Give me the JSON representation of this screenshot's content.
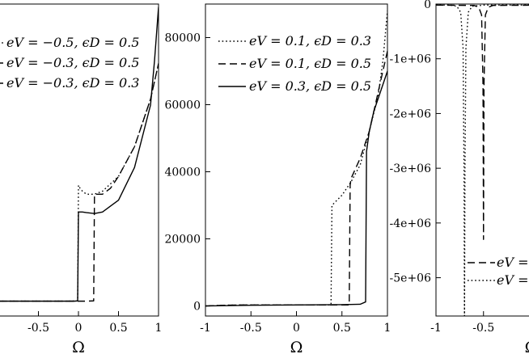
{
  "chart_data": [
    {
      "type": "line",
      "xlabel": "Ω",
      "ylabel": "",
      "xlim": [
        -1,
        1
      ],
      "ylim": [
        -5,
        100
      ],
      "x_ticks": [
        "-0.5",
        "0",
        "0.5",
        "1"
      ],
      "y_ticks": [],
      "legend_position": "top-left",
      "series": [
        {
          "name": "eV = −0.5, ϵD = 0.5",
          "style": "dotted",
          "x": [
            -1,
            -0.1,
            -0.01,
            0.0,
            0.02,
            0.05,
            0.1,
            0.2,
            0.3,
            0.5,
            0.7,
            0.9,
            1.0
          ],
          "y": [
            0,
            0,
            0.1,
            39,
            38,
            37,
            36,
            36,
            37,
            42,
            52,
            68,
            80
          ]
        },
        {
          "name": "eV = −0.3, ϵD = 0.5",
          "style": "dashed",
          "x": [
            -1,
            0.1,
            0.19,
            0.2,
            0.25,
            0.3,
            0.4,
            0.5,
            0.7,
            0.9,
            1.0
          ],
          "y": [
            0,
            0,
            0.1,
            36,
            36,
            36,
            38,
            42,
            52,
            68,
            80
          ]
        },
        {
          "name": "eV = −0.3, ϵD = 0.3",
          "style": "solid",
          "x": [
            -1,
            -0.05,
            -0.01,
            0.0,
            0.02,
            0.05,
            0.1,
            0.2,
            0.3,
            0.5,
            0.7,
            0.9,
            0.95,
            1.0
          ],
          "y": [
            0,
            0,
            0.1,
            30,
            30,
            30,
            29.8,
            29.5,
            30,
            34,
            45,
            66,
            81,
            99
          ]
        }
      ]
    },
    {
      "type": "line",
      "xlabel": "Ω",
      "ylabel": "",
      "xlim": [
        -1,
        1
      ],
      "ylim": [
        -3000,
        90000
      ],
      "x_ticks": [
        "-1",
        "-0.5",
        "0",
        "0.5",
        "1"
      ],
      "y_ticks": [
        "0",
        "20000",
        "40000",
        "60000",
        "80000"
      ],
      "legend_position": "top-right",
      "series": [
        {
          "name": "eV = 0.1, ϵD = 0.3",
          "style": "dotted",
          "x": [
            -1,
            -0.8,
            -0.6,
            -0.4,
            0,
            0.38,
            0.39,
            0.5,
            0.55,
            0.6,
            0.7,
            0.8,
            0.9,
            0.95,
            1.0
          ],
          "y": [
            0,
            200,
            300,
            300,
            300,
            300,
            30000,
            33000,
            35000,
            37000,
            42000,
            52000,
            63000,
            73000,
            88000
          ]
        },
        {
          "name": "eV = 0.1, ϵD = 0.5",
          "style": "dashed",
          "x": [
            -1,
            -0.8,
            -0.6,
            -0.4,
            0,
            0.58,
            0.59,
            0.6,
            0.65,
            0.7,
            0.8,
            0.9,
            1.0
          ],
          "y": [
            0,
            200,
            300,
            300,
            300,
            300,
            36000,
            38000,
            41000,
            44000,
            52000,
            64000,
            76000
          ]
        },
        {
          "name": "eV = 0.3, ϵD = 0.5",
          "style": "solid",
          "x": [
            -1,
            -0.5,
            0,
            0.5,
            0.7,
            0.76,
            0.77,
            0.8,
            0.85,
            0.9,
            0.95,
            1.0
          ],
          "y": [
            0,
            200,
            300,
            400,
            500,
            1200,
            46000,
            52000,
            58000,
            62000,
            66000,
            70000
          ]
        }
      ]
    },
    {
      "type": "line",
      "xlabel": "Ω",
      "ylabel": "",
      "xlim": [
        -1,
        0.2
      ],
      "ylim": [
        -5700000,
        0
      ],
      "x_ticks": [
        "-1",
        "-0.5"
      ],
      "y_ticks": [
        "0",
        "-1e+06",
        "-2e+06",
        "-3e+06",
        "-4e+06",
        "-5e+06"
      ],
      "legend_position": "bottom-right",
      "series": [
        {
          "name": "eV =",
          "style": "dashed",
          "x": [
            -1,
            -0.6,
            -0.55,
            -0.52,
            -0.505,
            -0.5,
            -0.495,
            -0.48,
            -0.45,
            -0.4,
            0.2
          ],
          "y": [
            -20000,
            -25000,
            -60000,
            -200000,
            -1500000,
            -4300000,
            -1500000,
            -200000,
            -60000,
            -25000,
            -20000
          ]
        },
        {
          "name": "eV =",
          "style": "dotted",
          "x": [
            -1,
            -0.85,
            -0.78,
            -0.74,
            -0.715,
            -0.705,
            -0.7,
            -0.695,
            -0.685,
            -0.66,
            -0.62,
            -0.5,
            0.2
          ],
          "y": [
            -20000,
            -20000,
            -40000,
            -150000,
            -800000,
            -3000000,
            -5700000,
            -3000000,
            -800000,
            -150000,
            -40000,
            -20000,
            -20000
          ]
        }
      ]
    }
  ]
}
